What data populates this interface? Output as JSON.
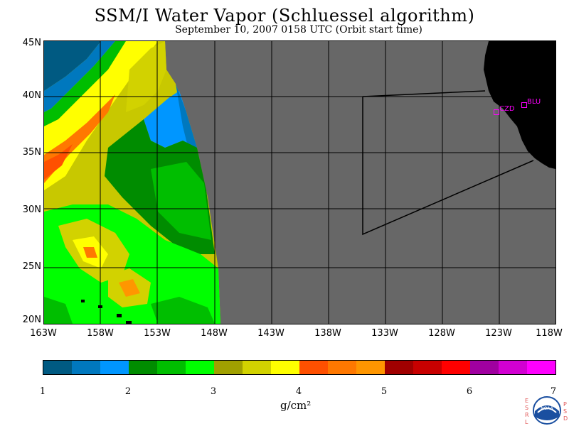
{
  "header": {
    "title": "SSM/I Water Vapor (Schluessel algorithm)",
    "subtitle": "September 10, 2007  0158 UTC  (Orbit start time)"
  },
  "map": {
    "lat_labels": [
      "45N",
      "40N",
      "35N",
      "30N",
      "25N",
      "20N"
    ],
    "lon_labels": [
      "163W",
      "158W",
      "153W",
      "148W",
      "143W",
      "138W",
      "133W",
      "128W",
      "123W",
      "118W"
    ],
    "lat_range": [
      20,
      45
    ],
    "lon_range": [
      -163,
      -118
    ],
    "stations": [
      {
        "code": "CZD"
      },
      {
        "code": "BLU"
      }
    ],
    "colors": {
      "no_data": "#676767",
      "land": "#000000",
      "station": "#ff00ff"
    }
  },
  "colorbar": {
    "unit": "g/cm²",
    "tick_labels": [
      "1",
      "2",
      "3",
      "4",
      "5",
      "6",
      "7"
    ],
    "range": [
      1,
      7
    ],
    "colors": [
      "#005a82",
      "#0078be",
      "#0096ff",
      "#008c00",
      "#00be00",
      "#00ff00",
      "#a0a000",
      "#d2d200",
      "#ffff00",
      "#ff5000",
      "#ff7800",
      "#ff9600",
      "#a00000",
      "#c80000",
      "#ff0000",
      "#a000a0",
      "#d200d2",
      "#ff00ff"
    ]
  },
  "logo": {
    "name": "NOAA",
    "left_letters": [
      "E",
      "S",
      "R",
      "L"
    ],
    "right_letters": [
      "P",
      "S",
      "D"
    ]
  }
}
